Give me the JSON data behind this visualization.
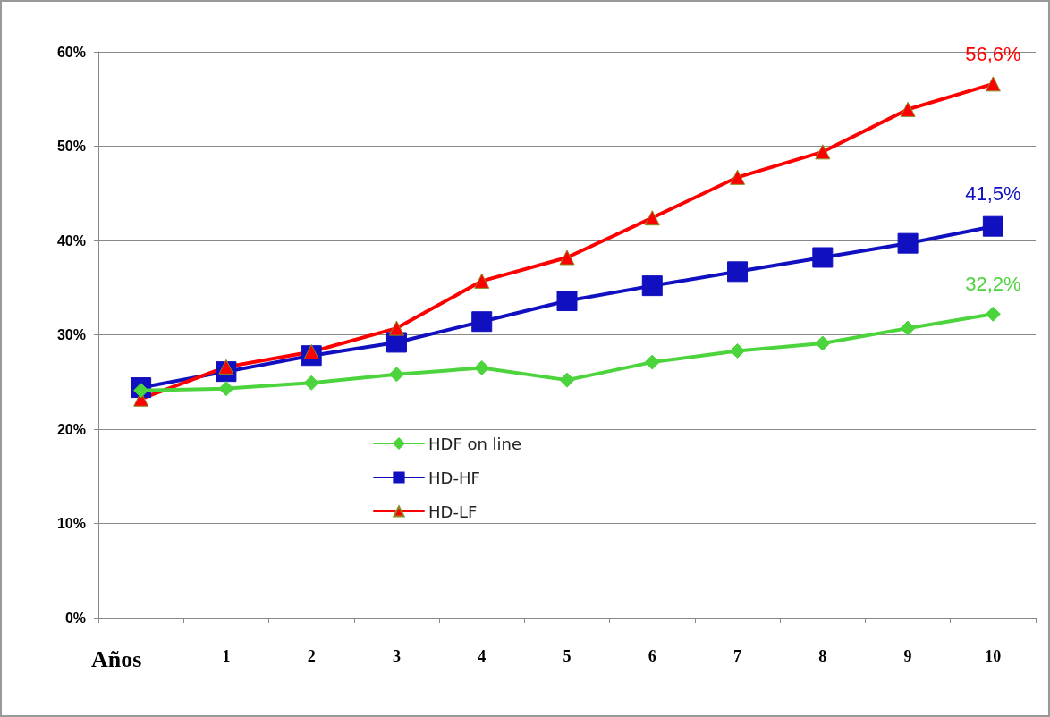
{
  "chart_data": {
    "type": "line",
    "xlabel": "Años",
    "categories": [
      null,
      "1",
      "2",
      "3",
      "4",
      "5",
      "6",
      "7",
      "8",
      "9",
      "10"
    ],
    "ylim": [
      0,
      60
    ],
    "yticks": [
      {
        "value": 0,
        "label": "0%"
      },
      {
        "value": 10,
        "label": "10%"
      },
      {
        "value": 20,
        "label": "20%"
      },
      {
        "value": 30,
        "label": "30%"
      },
      {
        "value": 40,
        "label": "40%"
      },
      {
        "value": 50,
        "label": "50%"
      },
      {
        "value": 60,
        "label": "60%"
      }
    ],
    "grid": "y",
    "legend": "left",
    "series": [
      {
        "name": "HDF on line",
        "color": "#4cd43c",
        "marker": "diamond",
        "values": [
          24.1,
          24.3,
          24.9,
          25.8,
          26.5,
          25.2,
          27.1,
          28.3,
          29.1,
          30.7,
          32.2
        ],
        "value_labels": [
          null,
          null,
          null,
          null,
          null,
          null,
          null,
          null,
          null,
          null,
          "32,2%"
        ]
      },
      {
        "name": "HD-HF",
        "color": "#1010c0",
        "marker": "square",
        "values": [
          24.4,
          26.1,
          27.8,
          29.2,
          31.4,
          33.6,
          35.2,
          36.7,
          38.2,
          39.7,
          41.5
        ],
        "value_labels": [
          null,
          null,
          null,
          null,
          null,
          null,
          null,
          null,
          null,
          null,
          "41,5%"
        ]
      },
      {
        "name": "HD-LF",
        "color": "#ff0000",
        "marker": "triangle",
        "values": [
          23.2,
          26.6,
          28.2,
          30.7,
          35.7,
          38.2,
          42.4,
          46.7,
          49.4,
          53.9,
          56.6
        ],
        "value_labels": [
          null,
          null,
          null,
          null,
          null,
          null,
          null,
          null,
          null,
          null,
          "56,6%"
        ]
      }
    ]
  }
}
